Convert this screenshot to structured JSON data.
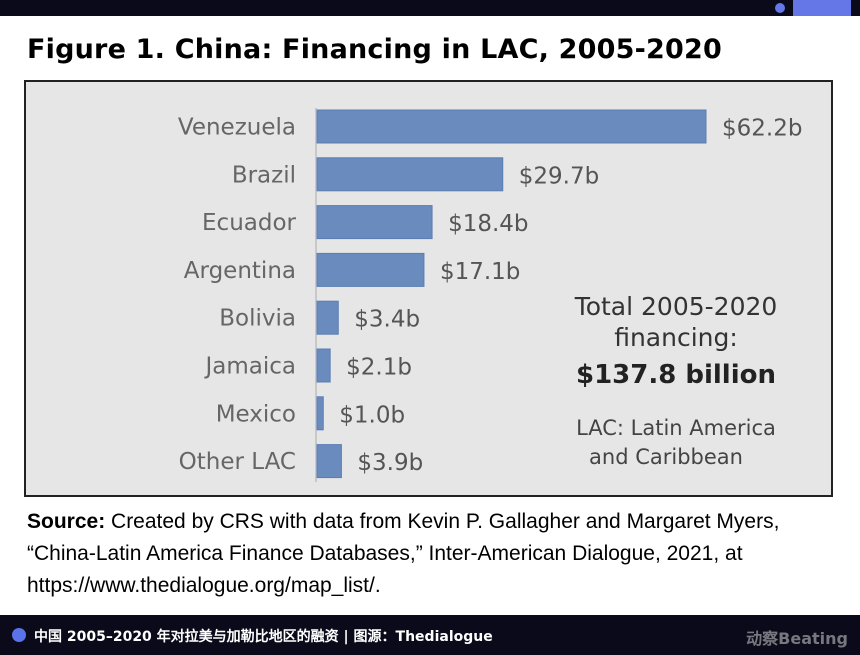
{
  "header": {
    "title": "Figure 1. China: Financing in LAC, 2005-2020"
  },
  "chart_data": {
    "type": "bar",
    "orientation": "horizontal",
    "categories": [
      "Venezuela",
      "Brazil",
      "Ecuador",
      "Argentina",
      "Bolivia",
      "Jamaica",
      "Mexico",
      "Other LAC"
    ],
    "values": [
      62.2,
      29.7,
      18.4,
      17.1,
      3.4,
      2.1,
      1.0,
      3.9
    ],
    "data_labels": [
      "$62.2b",
      "$29.7b",
      "$18.4b",
      "$17.1b",
      "$3.4b",
      "$2.1b",
      "$1.0b",
      "$3.9b"
    ],
    "unit": "billion USD",
    "grid": false,
    "bar_color": "#6a8bbd",
    "background": "#e6e6e6",
    "annotations": {
      "total_line1": "Total 2005-2020",
      "total_line2": "financing:",
      "total_value": "$137.8 billion",
      "lac_line1": "LAC: Latin America",
      "lac_line2": "and Caribbean"
    }
  },
  "source": {
    "label": "Source:",
    "text": " Created by CRS with data from Kevin P. Gallagher and Margaret Myers, “China-Latin America Finance Databases,” Inter-American Dialogue, 2021, at https://www.thedialogue.org/map_list/."
  },
  "footer": {
    "caption": "中国 2005–2020 年对拉美与加勒比地区的融资 | 图源：Thedialogue",
    "brand": "动察Beating"
  }
}
